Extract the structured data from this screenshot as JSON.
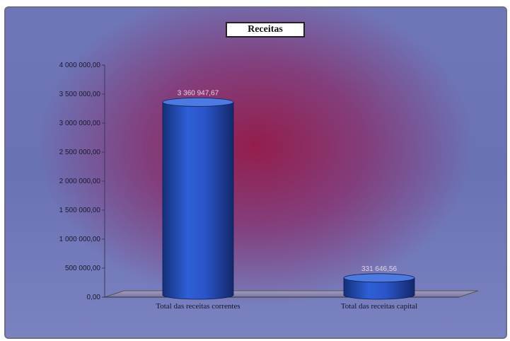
{
  "chart_data": {
    "type": "bar",
    "title": "Receitas",
    "categories": [
      "Total das receitas correntes",
      "Total das receitas capital"
    ],
    "values": [
      3360947.67,
      331646.56
    ],
    "data_labels": [
      "3 360 947,67",
      "331 646,56"
    ],
    "ylim": [
      0,
      4000000
    ],
    "yticks": [
      0,
      500000,
      1000000,
      1500000,
      2000000,
      2500000,
      3000000,
      3500000,
      4000000
    ],
    "ytick_labels": [
      "0,00",
      "500 000,00",
      "1 000 000,00",
      "1 500 000,00",
      "2 000 000,00",
      "2 500 000,00",
      "3 000 000,00",
      "3 500 000,00",
      "4 000 000,00"
    ],
    "xlabel": "",
    "ylabel": "",
    "grid": false,
    "legend": "none",
    "style": "3d-cylinder",
    "colors": {
      "bar": "#2a54c8",
      "bar_dark": "#14307a",
      "bar_top": "#4d7ae0",
      "background": "#6a72b6",
      "center_glow": "#961946"
    }
  }
}
